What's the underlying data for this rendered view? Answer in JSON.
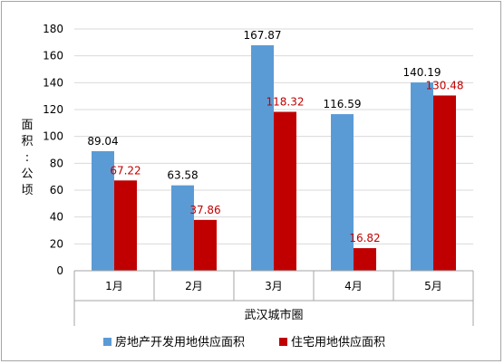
{
  "chart_data": {
    "type": "bar",
    "categories": [
      "1月",
      "2月",
      "3月",
      "4月",
      "5月"
    ],
    "group_label": "武汉城市圈",
    "ylabel": "面积：公顷",
    "ylim": [
      0,
      180
    ],
    "yticks": [
      0,
      20,
      40,
      60,
      80,
      100,
      120,
      140,
      160,
      180
    ],
    "grid": true,
    "legend_position": "bottom",
    "series": [
      {
        "name": "房地产开发用地供应面积",
        "color": "#5b9bd5",
        "values": [
          89.04,
          63.58,
          167.87,
          116.59,
          140.19
        ],
        "labels": [
          "89.04",
          "63.58",
          "167.87",
          "116.59",
          "140.19"
        ],
        "label_color": "#000000"
      },
      {
        "name": "住宅用地供应面积",
        "color": "#c00000",
        "values": [
          67.22,
          37.86,
          118.32,
          16.82,
          130.48
        ],
        "labels": [
          "67.22",
          "37.86",
          "118.32",
          "16.82",
          "130.48"
        ],
        "label_color": "#c00000"
      }
    ]
  }
}
